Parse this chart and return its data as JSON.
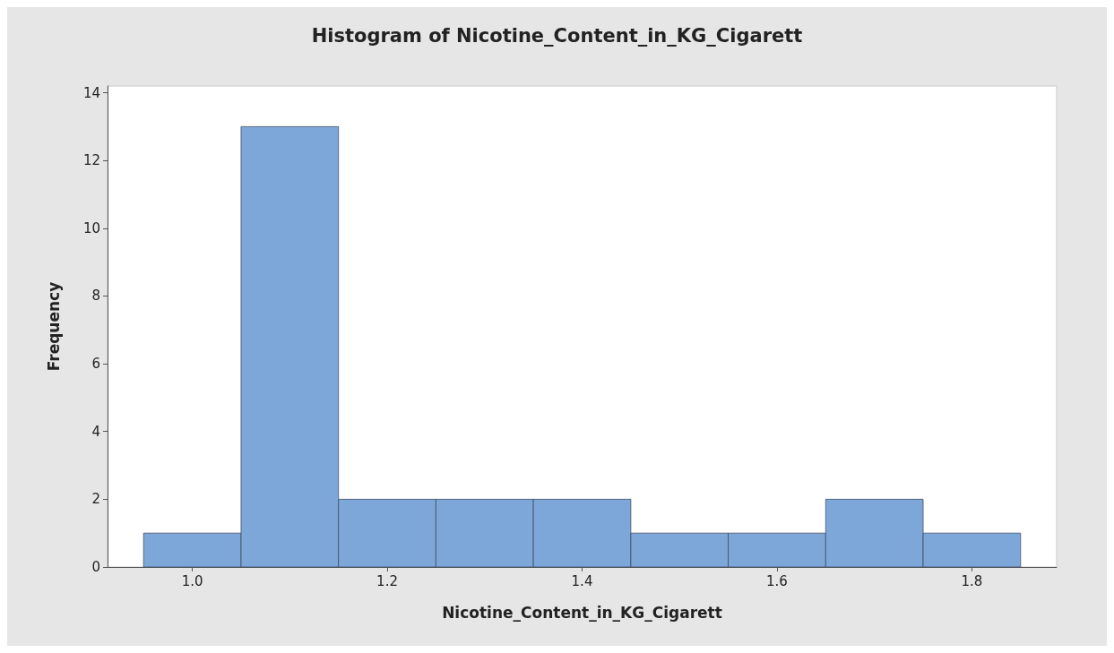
{
  "chart_data": {
    "type": "histogram",
    "title": "Histogram of Nicotine_Content_in_KG_Cigarett",
    "xlabel": "Nicotine_Content_in_KG_Cigarett",
    "ylabel": "Frequency",
    "bins": [
      0.95,
      1.05,
      1.15,
      1.25,
      1.35,
      1.45,
      1.55,
      1.65,
      1.75,
      1.85
    ],
    "values": [
      1,
      13,
      2,
      2,
      2,
      1,
      1,
      2,
      1
    ],
    "color": "#7da7d9",
    "xlim": [
      0.913,
      1.887
    ],
    "xticks": [
      {
        "value": 1.0,
        "label": "1.0"
      },
      1.2,
      1.4,
      1.6,
      1.8
    ],
    "ylim": [
      0,
      14.2
    ],
    "yticks": [
      0,
      2,
      4,
      6,
      8,
      10,
      12,
      14
    ],
    "grid": false
  }
}
